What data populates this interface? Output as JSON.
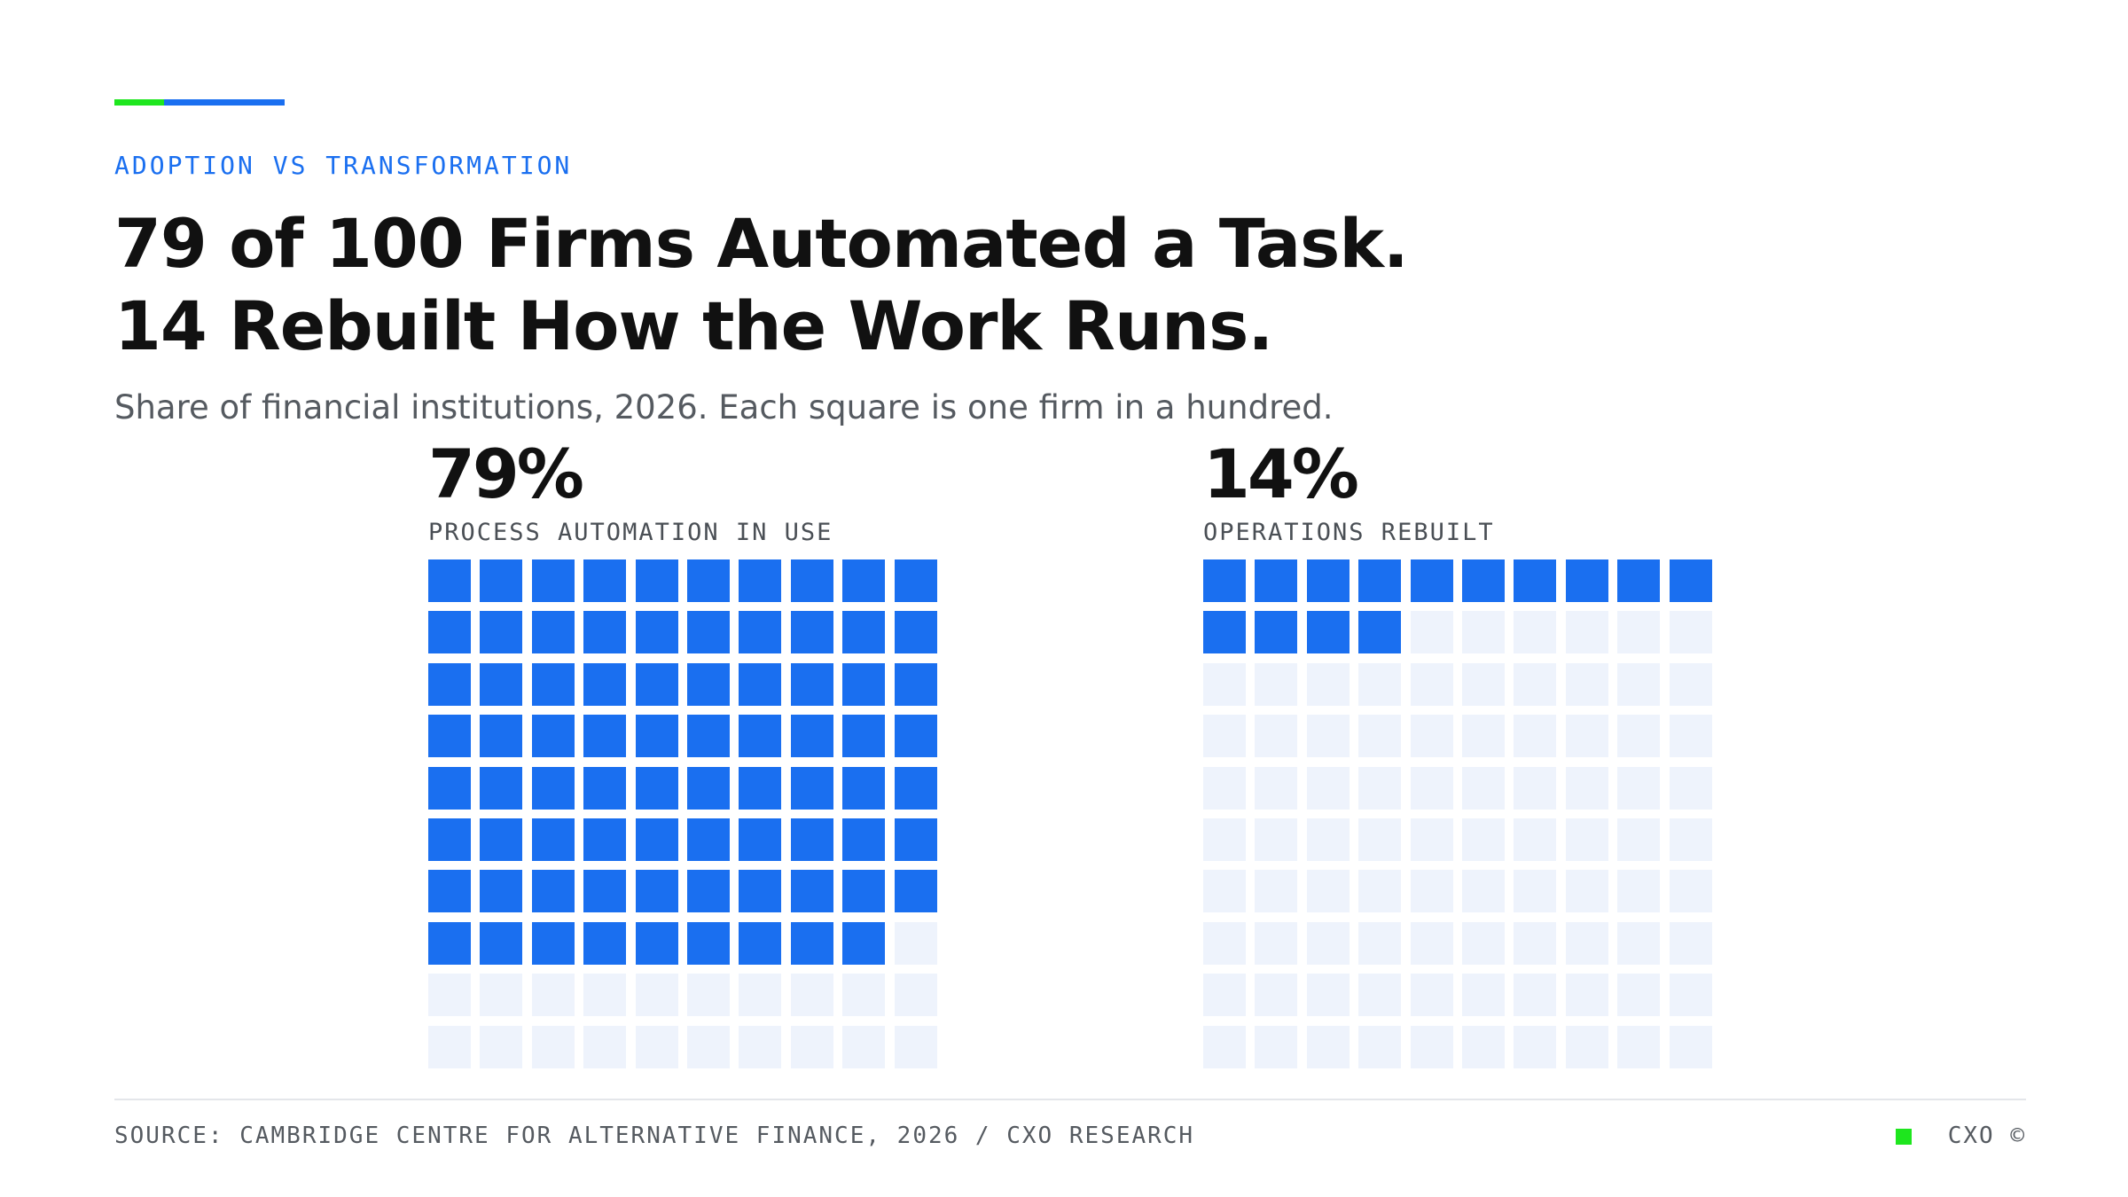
{
  "header": {
    "eyebrow": "ADOPTION VS TRANSFORMATION",
    "title_line1": "79 of 100 Firms Automated a Task.",
    "title_line2": "14 Rebuilt How the Work Runs.",
    "subtitle": "Share of financial institutions, 2026. Each square is one firm in a hundred."
  },
  "colors": {
    "accent_green": "#1ee61e",
    "accent_blue": "#1a6ff0",
    "filled": "#1a6ff0",
    "empty": "#eef3fc",
    "brand_mark": "#1ee61e"
  },
  "chart_data": [
    {
      "type": "waffle",
      "value": 79,
      "total": 100,
      "value_label": "79%",
      "label": "PROCESS AUTOMATION IN USE",
      "grid": [
        10,
        10
      ]
    },
    {
      "type": "waffle",
      "value": 14,
      "total": 100,
      "value_label": "14%",
      "label": "OPERATIONS REBUILT",
      "grid": [
        10,
        10
      ]
    }
  ],
  "footer": {
    "source": "SOURCE: CAMBRIDGE CENTRE FOR ALTERNATIVE FINANCE, 2026 / CXO RESEARCH",
    "brand": "CXO ©"
  }
}
